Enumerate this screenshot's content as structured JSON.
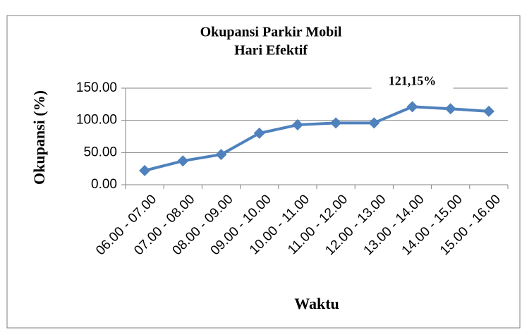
{
  "chart_data": {
    "type": "line",
    "title": [
      "Okupansi Parkir Mobil",
      "Hari Efektif"
    ],
    "x_label": "Waktu",
    "y_label": "Okupansi (%)",
    "categories": [
      "06.00 - 07.00",
      "07.00 - 08.00",
      "08.00 - 09.00",
      "09.00 - 10.00",
      "10.00 - 11.00",
      "11.00 - 12.00",
      "12.00 - 13.00",
      "13.00 - 14.00",
      "14.00 - 15.00",
      "15.00 - 16.00"
    ],
    "values": [
      22,
      37,
      47,
      80,
      93,
      96,
      96,
      121.15,
      118,
      114
    ],
    "value_labels": [
      null,
      null,
      null,
      null,
      null,
      null,
      null,
      "121,15%",
      null,
      null
    ],
    "color": "#4f81bd",
    "ylim": [
      0,
      150
    ],
    "yticks": [
      {
        "value": 0,
        "label": "0.00"
      },
      {
        "value": 50,
        "label": "50.00"
      },
      {
        "value": 100,
        "label": "100.00"
      },
      {
        "value": 150,
        "label": "150.00"
      }
    ],
    "grid": true
  }
}
